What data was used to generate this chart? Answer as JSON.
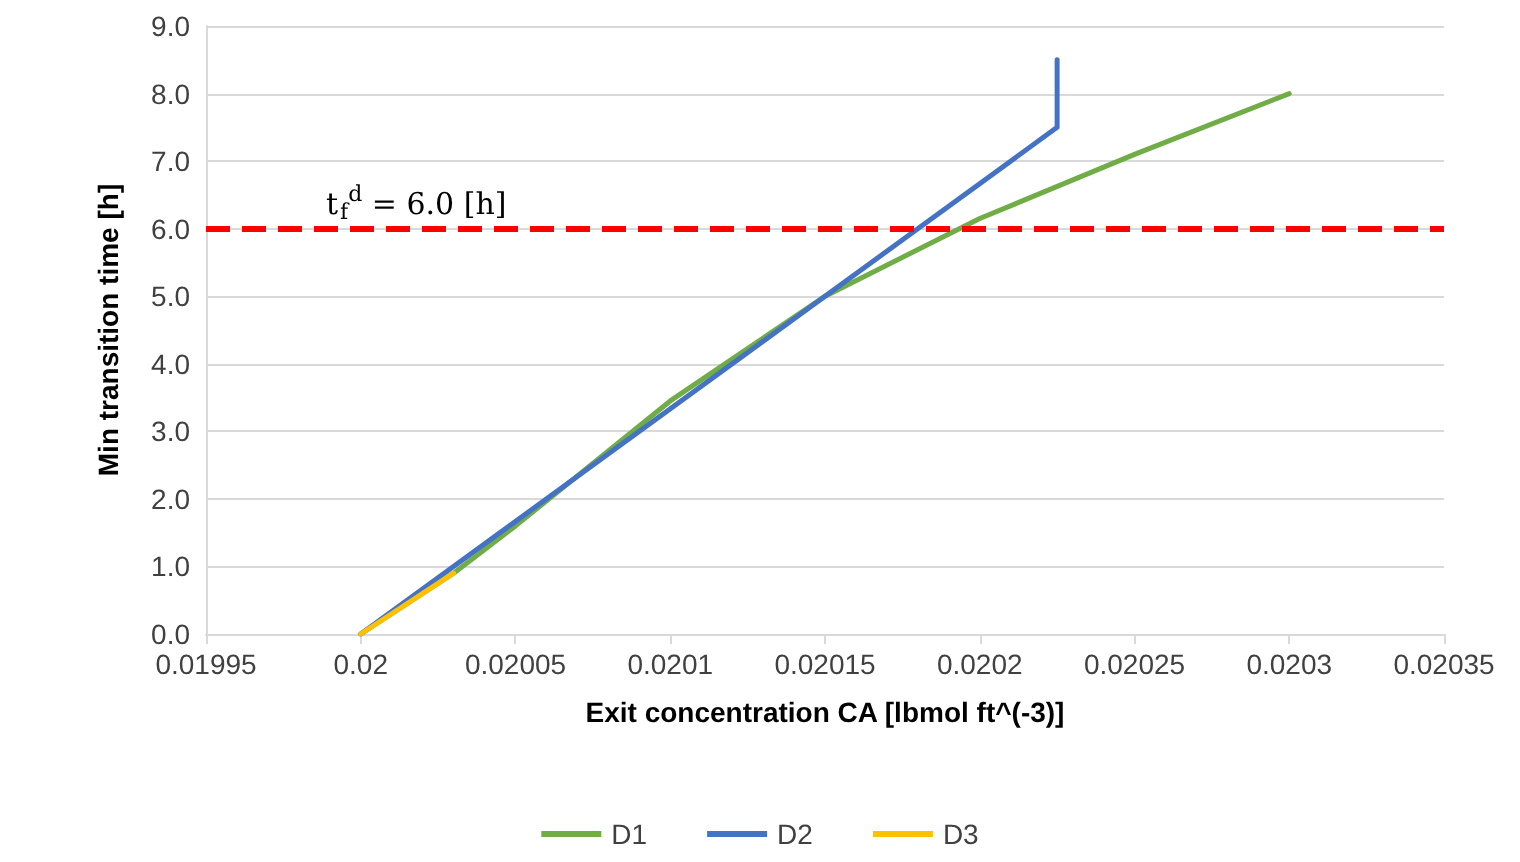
{
  "chart_data": {
    "type": "line",
    "xlabel": "Exit concentration CA [lbmol ft^(-3)]",
    "ylabel": "Min transition time [h]",
    "series": [
      {
        "name": "D1",
        "color": "#70ad47",
        "x": [
          0.02,
          0.02003,
          0.02005,
          0.0201,
          0.02015,
          0.0202,
          0.02025,
          0.0203
        ],
        "values": [
          0,
          0.9,
          1.6,
          3.45,
          5.0,
          6.15,
          7.1,
          8.0
        ]
      },
      {
        "name": "D2",
        "color": "#4472c4",
        "x": [
          0.02,
          0.020225,
          0.020225
        ],
        "values": [
          0,
          7.5,
          8.5
        ]
      },
      {
        "name": "D3",
        "color": "#ffc000",
        "x": [
          0.02,
          0.02003
        ],
        "values": [
          0,
          0.9
        ]
      }
    ],
    "xlim": [
      0.01995,
      0.02035
    ],
    "xticks": [
      0.01995,
      0.02,
      0.02005,
      0.0201,
      0.02015,
      0.0202,
      0.02025,
      0.0203,
      0.02035
    ],
    "ylim": [
      0,
      9
    ],
    "yticks": [
      {
        "value": 0,
        "label": "0.0"
      },
      {
        "value": 1,
        "label": "1.0"
      },
      {
        "value": 2,
        "label": "2.0"
      },
      {
        "value": 3,
        "label": "3.0"
      },
      {
        "value": 4,
        "label": "4.0"
      },
      {
        "value": 5,
        "label": "5.0"
      },
      {
        "value": 6,
        "label": "6.0"
      },
      {
        "value": 7,
        "label": "7.0"
      },
      {
        "value": 8,
        "label": "8.0"
      },
      {
        "value": 9,
        "label": "9.0"
      }
    ],
    "ref_lines": [
      {
        "axis": "y",
        "value": 6,
        "label": "t$_{f}$$^{d}$ = 6.0 [h]",
        "color": "#ff0000",
        "line_style": "dashed"
      }
    ],
    "grid": "y",
    "legend": "bottom",
    "marker": "none",
    "line_style": "solid"
  }
}
